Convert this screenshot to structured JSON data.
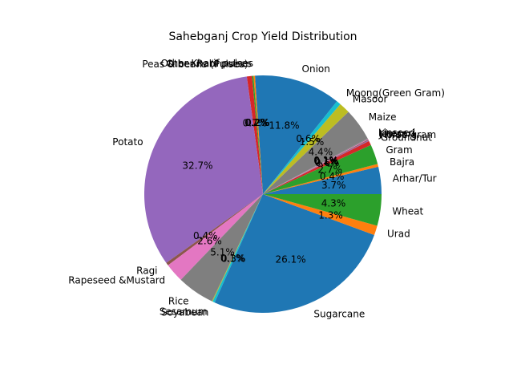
{
  "chart_data": {
    "type": "pie",
    "title": "Sahebganj Crop Yield Distribution",
    "start_angle_deg": 0,
    "direction": "counterclockwise",
    "slices": [
      {
        "label": "Arhar/Tur",
        "value": 3.7,
        "pct_label": "3.7%",
        "color": "#1f77b4"
      },
      {
        "label": "Bajra",
        "value": 0.4,
        "pct_label": "0.4%",
        "color": "#ff7f0e"
      },
      {
        "label": "Gram",
        "value": 2.7,
        "pct_label": "2.7%",
        "color": "#2ca02c"
      },
      {
        "label": "Groundnut",
        "value": 0.6,
        "pct_label": "0.6%",
        "color": "#d62728"
      },
      {
        "label": "Horse-gram",
        "value": 0.1,
        "pct_label": "0.1%",
        "color": "#9467bd"
      },
      {
        "label": "Jowar",
        "value": 0.1,
        "pct_label": "0.1%",
        "color": "#8c564b"
      },
      {
        "label": "Khesari",
        "value": 0.1,
        "pct_label": "0.1%",
        "color": "#e377c2"
      },
      {
        "label": "Linseed",
        "value": 0.1,
        "pct_label": "0.1%",
        "color": "#7f7f7f"
      },
      {
        "label": "Maize",
        "value": 4.4,
        "pct_label": "4.4%",
        "color": "#7f7f7f"
      },
      {
        "label": "Masoor",
        "value": 1.5,
        "pct_label": "1.5%",
        "color": "#bcbd22"
      },
      {
        "label": "Moong(Green Gram)",
        "value": 0.6,
        "pct_label": "0.6%",
        "color": "#17becf"
      },
      {
        "label": "Onion",
        "value": 11.8,
        "pct_label": "11.8%",
        "color": "#1f77b4"
      },
      {
        "label": "Other Kharif pulses",
        "value": 0.2,
        "pct_label": "0.2%",
        "color": "#ff7f0e"
      },
      {
        "label": "Other Rabi pulses",
        "value": 0.2,
        "pct_label": "0.2%",
        "color": "#2ca02c"
      },
      {
        "label": "Peas & beans (Pulses)",
        "value": 0.7,
        "pct_label": "0.7%",
        "color": "#d62728"
      },
      {
        "label": "Potato",
        "value": 32.7,
        "pct_label": "32.7%",
        "color": "#9467bd"
      },
      {
        "label": "Ragi",
        "value": 0.4,
        "pct_label": "0.4%",
        "color": "#8c564b"
      },
      {
        "label": "Rapeseed &Mustard",
        "value": 2.6,
        "pct_label": "2.6%",
        "color": "#e377c2"
      },
      {
        "label": "Rice",
        "value": 5.1,
        "pct_label": "5.1%",
        "color": "#7f7f7f"
      },
      {
        "label": "Sesamum",
        "value": 0.1,
        "pct_label": "0.1%",
        "color": "#bcbd22"
      },
      {
        "label": "Soyabean",
        "value": 0.3,
        "pct_label": "0.3%",
        "color": "#17becf"
      },
      {
        "label": "Sugarcane",
        "value": 26.1,
        "pct_label": "26.1%",
        "color": "#1f77b4"
      },
      {
        "label": "Urad",
        "value": 1.3,
        "pct_label": "1.3%",
        "color": "#ff7f0e"
      },
      {
        "label": "Wheat",
        "value": 4.3,
        "pct_label": "4.3%",
        "color": "#2ca02c"
      }
    ]
  }
}
